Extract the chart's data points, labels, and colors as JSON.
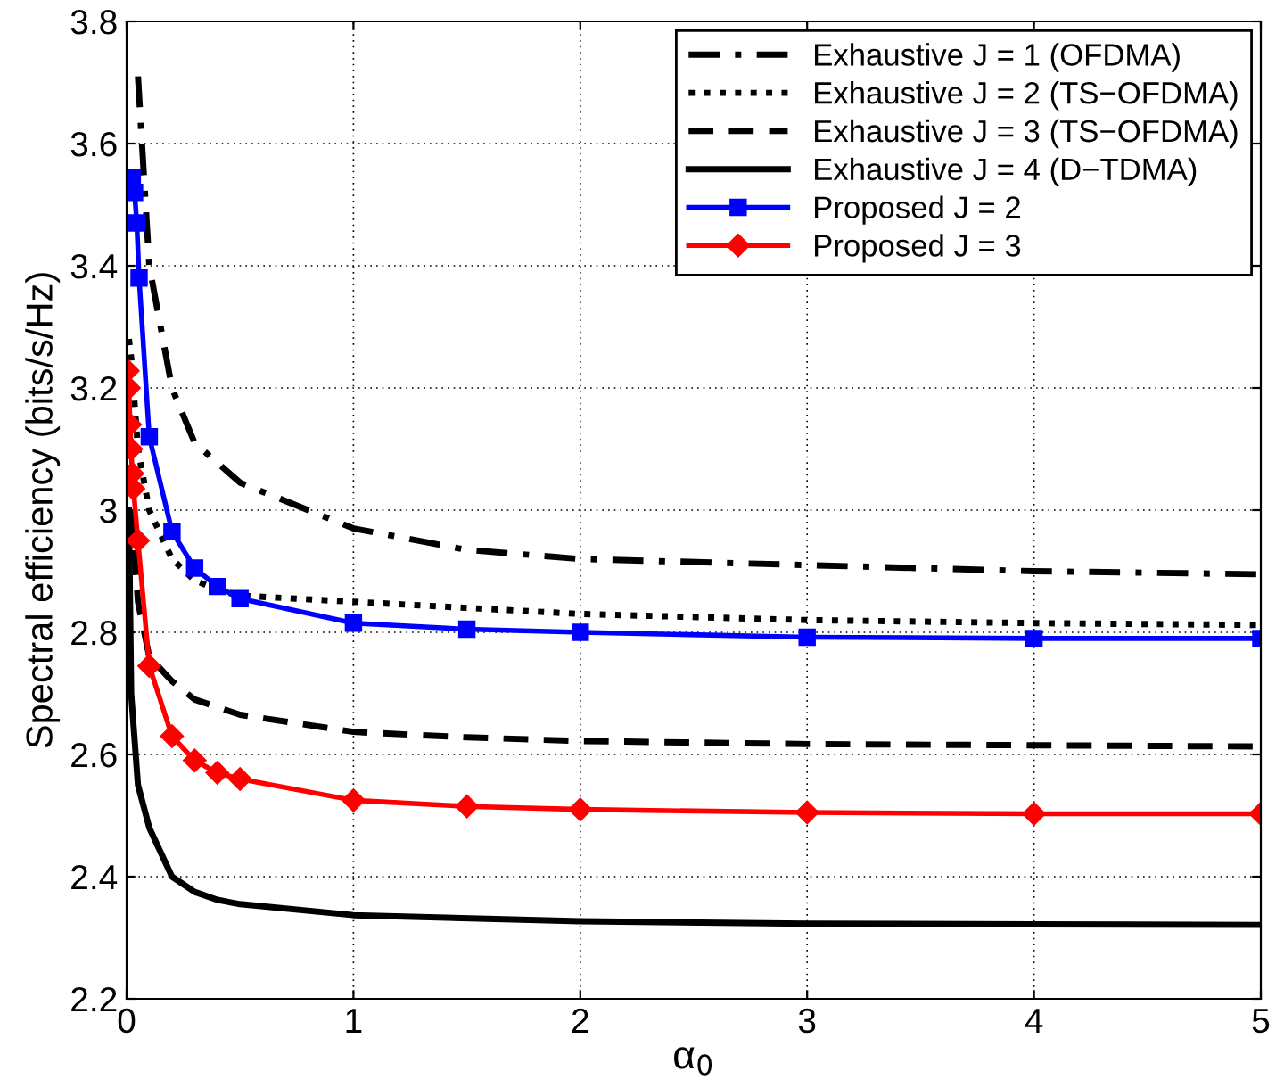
{
  "chart_data": {
    "type": "line",
    "xlabel": "α$_{0}$",
    "ylabel": "Spectral efficiency (bits/s/Hz)",
    "xlim": [
      0,
      5
    ],
    "ylim": [
      2.2,
      3.8
    ],
    "xticks": [
      0,
      1,
      2,
      3,
      4,
      5
    ],
    "yticks": [
      {
        "value": 2.2,
        "label": "2.2"
      },
      {
        "value": 2.4,
        "label": "2.4"
      },
      {
        "value": 2.6,
        "label": "2.6"
      },
      {
        "value": 2.8,
        "label": "2.8"
      },
      {
        "value": 3.0,
        "label": "3"
      },
      {
        "value": 3.2,
        "label": "3.2"
      },
      {
        "value": 3.4,
        "label": "3.4"
      },
      {
        "value": 3.6,
        "label": "3.6"
      },
      {
        "value": 3.8,
        "label": "3.8"
      }
    ],
    "grid": true,
    "legend": "top right",
    "series": [
      {
        "name": "Exhaustive J = 1 (OFDMA)",
        "color": "#000000",
        "line_style": "dashdot",
        "marker": "none",
        "x": [
          0.05,
          0.1,
          0.2,
          0.3,
          0.5,
          1,
          1.5,
          2,
          3,
          4,
          5
        ],
        "values": [
          3.71,
          3.4,
          3.2,
          3.11,
          3.045,
          2.97,
          2.935,
          2.92,
          2.91,
          2.9,
          2.895
        ]
      },
      {
        "name": "Exhaustive J = 2 (TS−OFDMA)",
        "color": "#000000",
        "line_style": "dotted",
        "marker": "none",
        "x": [
          0.01,
          0.02,
          0.05,
          0.1,
          0.2,
          0.3,
          0.4,
          0.5,
          1,
          2,
          3,
          4,
          5
        ],
        "values": [
          3.28,
          3.25,
          3.1,
          3.0,
          2.92,
          2.885,
          2.87,
          2.86,
          2.85,
          2.83,
          2.82,
          2.815,
          2.812
        ]
      },
      {
        "name": "Exhaustive J = 3 (TS−OFDMA)",
        "color": "#000000",
        "line_style": "dashed",
        "marker": "none",
        "x": [
          0.02,
          0.05,
          0.1,
          0.2,
          0.3,
          0.5,
          1,
          1.5,
          2,
          3,
          4,
          5
        ],
        "values": [
          3.0,
          2.85,
          2.76,
          2.72,
          2.69,
          2.665,
          2.637,
          2.628,
          2.622,
          2.617,
          2.615,
          2.613
        ]
      },
      {
        "name": "Exhaustive J = 4 (D−TDMA)",
        "color": "#000000",
        "line_style": "solid",
        "marker": "none",
        "x": [
          0.01,
          0.02,
          0.05,
          0.1,
          0.2,
          0.3,
          0.4,
          0.5,
          1,
          2,
          3,
          4,
          5
        ],
        "values": [
          3.0,
          2.7,
          2.55,
          2.48,
          2.4,
          2.375,
          2.362,
          2.355,
          2.337,
          2.327,
          2.323,
          2.322,
          2.321
        ]
      },
      {
        "name": "Proposed J = 2",
        "color": "#0000ff",
        "line_style": "solid",
        "marker": "square",
        "x": [
          0,
          0.025,
          0.035,
          0.045,
          0.055,
          0.1,
          0.2,
          0.3,
          0.4,
          0.5,
          1,
          1.5,
          2,
          3,
          4,
          5
        ],
        "values": [
          3.545,
          3.545,
          3.52,
          3.47,
          3.38,
          3.12,
          2.965,
          2.905,
          2.875,
          2.855,
          2.815,
          2.805,
          2.8,
          2.792,
          2.79,
          2.79
        ]
      },
      {
        "name": "Proposed J = 3",
        "color": "#ff0000",
        "line_style": "solid",
        "marker": "diamond",
        "x": [
          0.005,
          0.01,
          0.015,
          0.02,
          0.025,
          0.03,
          0.05,
          0.1,
          0.2,
          0.3,
          0.4,
          0.5,
          1,
          1.5,
          2,
          3,
          4,
          5
        ],
        "values": [
          3.228,
          3.2,
          3.14,
          3.1,
          3.06,
          3.035,
          2.95,
          2.745,
          2.63,
          2.59,
          2.57,
          2.56,
          2.525,
          2.515,
          2.51,
          2.505,
          2.503,
          2.503
        ]
      }
    ]
  }
}
